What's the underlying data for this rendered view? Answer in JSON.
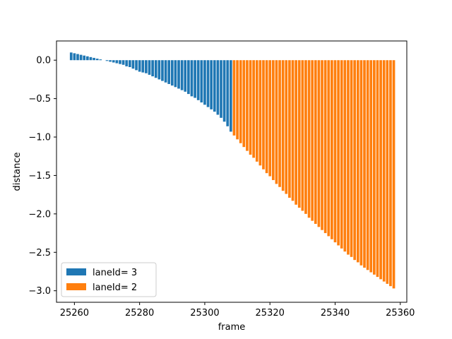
{
  "chart_data": {
    "type": "bar",
    "xlabel": "frame",
    "ylabel": "distance",
    "xlim": [
      25254.5,
      25362
    ],
    "ylim": [
      -3.15,
      0.25
    ],
    "xticks": [
      25260,
      25280,
      25300,
      25320,
      25340,
      25360
    ],
    "yticks": [
      0.0,
      -0.5,
      -1.0,
      -1.5,
      -2.0,
      -2.5,
      -3.0
    ],
    "ytick_labels": [
      "0.0",
      "−0.5",
      "−1.0",
      "−1.5",
      "−2.0",
      "−2.5",
      "−3.0"
    ],
    "legend_position": "lower-left",
    "grid": false,
    "series": [
      {
        "name": "laneId= 3",
        "color": "#1f77b4",
        "x": [
          25259,
          25260,
          25261,
          25262,
          25263,
          25264,
          25265,
          25266,
          25267,
          25268,
          25269,
          25270,
          25271,
          25272,
          25273,
          25274,
          25275,
          25276,
          25277,
          25278,
          25279,
          25280,
          25281,
          25282,
          25283,
          25284,
          25285,
          25286,
          25287,
          25288,
          25289,
          25290,
          25291,
          25292,
          25293,
          25294,
          25295,
          25296,
          25297,
          25298,
          25299,
          25300,
          25301,
          25302,
          25303,
          25304,
          25305,
          25306,
          25307,
          25308
        ],
        "values": [
          0.1,
          0.09,
          0.08,
          0.07,
          0.06,
          0.05,
          0.04,
          0.03,
          0.02,
          0.01,
          0.0,
          -0.01,
          -0.02,
          -0.03,
          -0.04,
          -0.05,
          -0.06,
          -0.08,
          -0.09,
          -0.11,
          -0.13,
          -0.15,
          -0.16,
          -0.17,
          -0.19,
          -0.21,
          -0.23,
          -0.25,
          -0.27,
          -0.29,
          -0.31,
          -0.33,
          -0.35,
          -0.37,
          -0.39,
          -0.41,
          -0.44,
          -0.47,
          -0.49,
          -0.52,
          -0.55,
          -0.58,
          -0.61,
          -0.64,
          -0.67,
          -0.71,
          -0.75,
          -0.8,
          -0.86,
          -0.93
        ]
      },
      {
        "name": "laneId= 2",
        "color": "#ff7f0e",
        "x": [
          25309,
          25310,
          25311,
          25312,
          25313,
          25314,
          25315,
          25316,
          25317,
          25318,
          25319,
          25320,
          25321,
          25322,
          25323,
          25324,
          25325,
          25326,
          25327,
          25328,
          25329,
          25330,
          25331,
          25332,
          25333,
          25334,
          25335,
          25336,
          25337,
          25338,
          25339,
          25340,
          25341,
          25342,
          25343,
          25344,
          25345,
          25346,
          25347,
          25348,
          25349,
          25350,
          25351,
          25352,
          25353,
          25354,
          25355,
          25356,
          25357,
          25358
        ],
        "values": [
          -0.98,
          -1.03,
          -1.08,
          -1.13,
          -1.18,
          -1.23,
          -1.27,
          -1.32,
          -1.37,
          -1.42,
          -1.47,
          -1.51,
          -1.56,
          -1.61,
          -1.65,
          -1.7,
          -1.74,
          -1.79,
          -1.83,
          -1.88,
          -1.92,
          -1.96,
          -2.0,
          -2.05,
          -2.09,
          -2.13,
          -2.17,
          -2.21,
          -2.25,
          -2.29,
          -2.33,
          -2.37,
          -2.41,
          -2.45,
          -2.49,
          -2.53,
          -2.56,
          -2.6,
          -2.63,
          -2.67,
          -2.7,
          -2.73,
          -2.76,
          -2.79,
          -2.82,
          -2.85,
          -2.88,
          -2.91,
          -2.94,
          -2.97
        ]
      }
    ]
  }
}
